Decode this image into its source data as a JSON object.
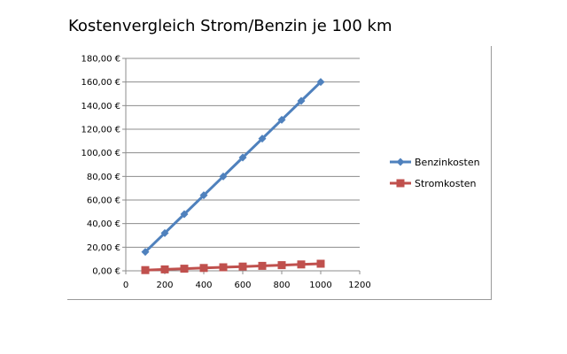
{
  "chart_data": {
    "type": "line",
    "title": "Kostenvergleich Strom/Benzin je 100 km",
    "xlabel": "",
    "ylabel": "",
    "xlim": [
      0,
      1200
    ],
    "ylim": [
      0,
      180
    ],
    "x_ticks": [
      "0",
      "200",
      "400",
      "600",
      "800",
      "1000",
      "1200"
    ],
    "y_ticks": [
      "0,00 €",
      "20,00 €",
      "40,00 €",
      "60,00 €",
      "80,00 €",
      "100,00 €",
      "120,00 €",
      "140,00 €",
      "160,00 €",
      "180,00 €"
    ],
    "grid": "horizontal",
    "legend_position": "right",
    "x": [
      100,
      200,
      300,
      400,
      500,
      600,
      700,
      800,
      900,
      1000
    ],
    "series": [
      {
        "name": "Benzinkosten",
        "color": "#4f81bd",
        "marker": "diamond",
        "values": [
          16,
          32,
          48,
          64,
          80,
          96,
          112,
          128,
          144,
          160
        ]
      },
      {
        "name": "Stromkosten",
        "color": "#c0504d",
        "marker": "square",
        "values": [
          0.6,
          1.2,
          1.8,
          2.4,
          3.0,
          3.6,
          4.2,
          4.8,
          5.4,
          6.0
        ]
      }
    ]
  }
}
